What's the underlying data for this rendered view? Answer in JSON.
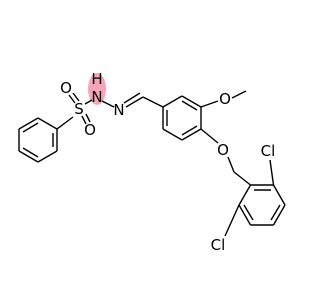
{
  "atoms": {
    "o_sulfonyl_top": "O",
    "s": "S",
    "o_sulfonyl_bottom": "O",
    "h": "H",
    "n_amine": "N",
    "n_imine": "N",
    "o_methoxy": "O",
    "o_ether": "O",
    "cl_top": "Cl",
    "cl_bottom": "Cl"
  }
}
